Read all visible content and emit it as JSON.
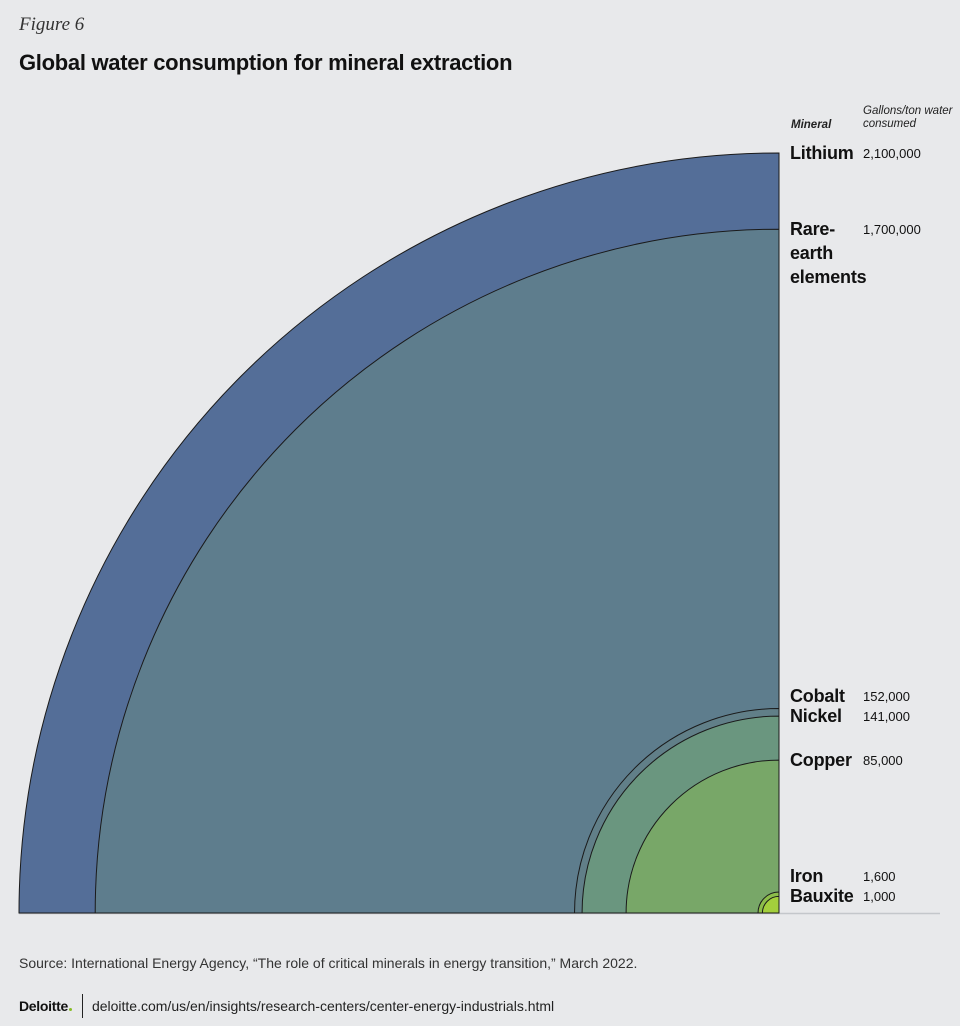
{
  "figure_label": "Figure 6",
  "footer": {
    "source": "Source: International Energy Agency, “The role of critical minerals in energy transition,” March 2022.",
    "logo_text": "Deloitte",
    "url": "deloitte.com/us/en/insights/research-centers/center-energy-industrials.html"
  },
  "chart_data": {
    "type": "nested-quarter-circle",
    "title": "Global water consumption for mineral extraction",
    "column_headers": {
      "mineral": "Mineral",
      "value": "Gallons/ton water consumed"
    },
    "series": [
      {
        "name": "Lithium",
        "label_lines": [
          "Lithium"
        ],
        "value": 2100000,
        "value_label": "2,100,000",
        "color": "#546e98"
      },
      {
        "name": "Rare-earth elements",
        "label_lines": [
          "Rare-",
          "earth",
          "elements"
        ],
        "value": 1700000,
        "value_label": "1,700,000",
        "color": "#5e7d8d"
      },
      {
        "name": "Cobalt",
        "label_lines": [
          "Cobalt"
        ],
        "value": 152000,
        "value_label": "152,000",
        "color": "#617f88"
      },
      {
        "name": "Nickel",
        "label_lines": [
          "Nickel"
        ],
        "value": 141000,
        "value_label": "141,000",
        "color": "#6a967f"
      },
      {
        "name": "Copper",
        "label_lines": [
          "Copper"
        ],
        "value": 85000,
        "value_label": "85,000",
        "color": "#78a768"
      },
      {
        "name": "Iron",
        "label_lines": [
          "Iron"
        ],
        "value": 1600,
        "value_label": "1,600",
        "color": "#8cbd4a"
      },
      {
        "name": "Bauxite",
        "label_lines": [
          "Bauxite"
        ],
        "value": 1000,
        "value_label": "1,000",
        "color": "#a3cf3c"
      }
    ]
  }
}
